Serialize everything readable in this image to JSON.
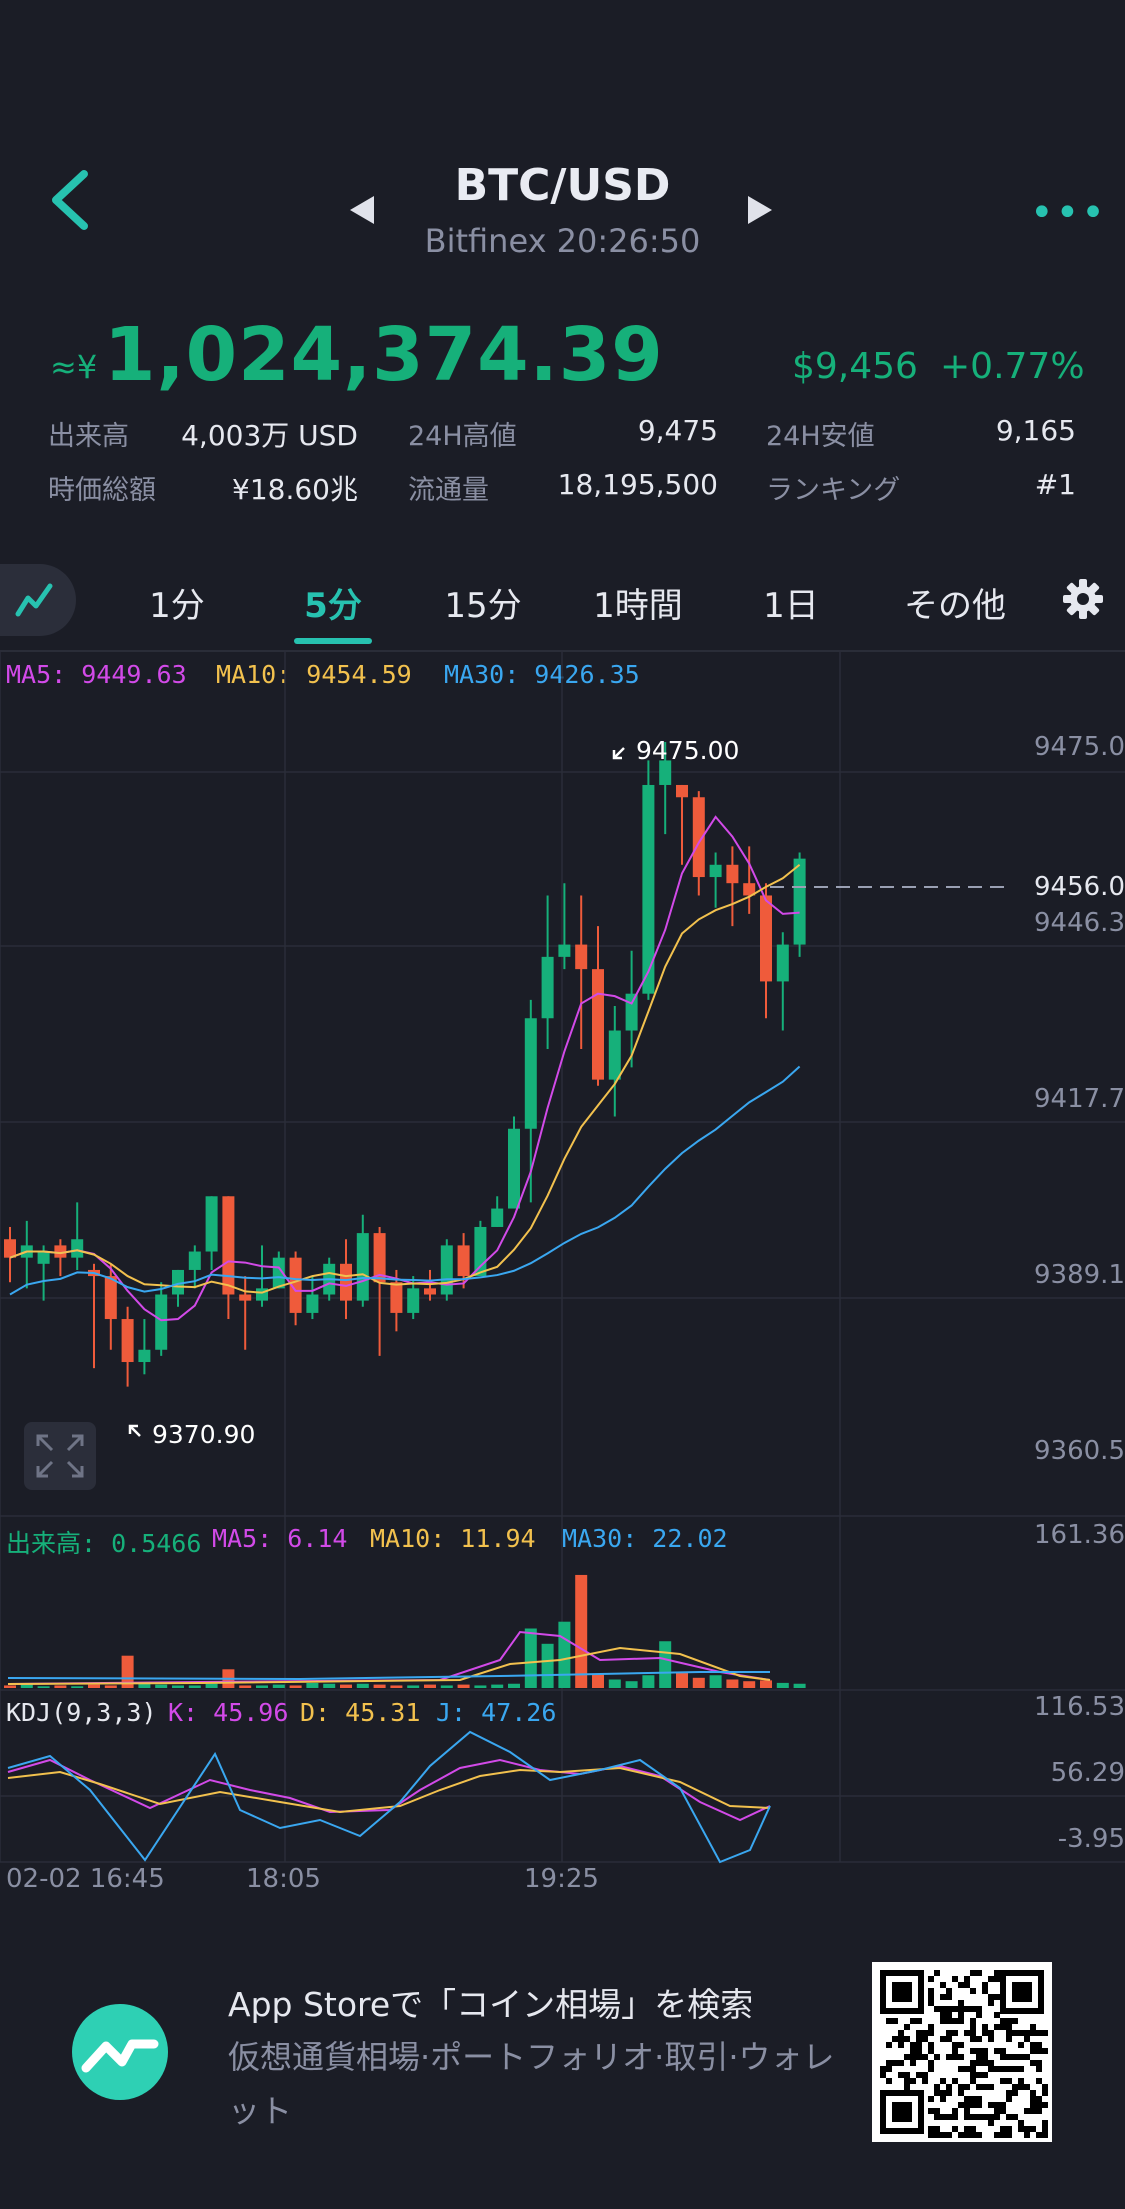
{
  "header": {
    "pair": "BTC/USD",
    "exchange_time": "Bitfinex 20:26:50"
  },
  "price": {
    "approx_prefix": "≈¥",
    "value": "1,024,374.39",
    "usd": "$9,456",
    "change": "+0.77%"
  },
  "stats": [
    {
      "label": "出来高",
      "value": "4,003万 USD"
    },
    {
      "label": "24H高値",
      "value": "9,475"
    },
    {
      "label": "24H安値",
      "value": "9,165"
    },
    {
      "label": "時価総額",
      "value": "¥18.60兆"
    },
    {
      "label": "流通量",
      "value": "18,195,500"
    },
    {
      "label": "ランキング",
      "value": "#1"
    }
  ],
  "tabs": [
    "1分",
    "5分",
    "15分",
    "1時間",
    "1日",
    "その他"
  ],
  "active_tab": "5分",
  "ma_legend": {
    "ma5": "MA5: 9449.63",
    "ma10": "MA10: 9454.59",
    "ma30": "MA30: 9426.35"
  },
  "price_axis": [
    "9475.0",
    "9456.0",
    "9446.3",
    "9417.7",
    "9389.1",
    "9360.5"
  ],
  "high_marker": "9475.00",
  "low_marker": "9370.90",
  "volume_legend": {
    "vol": "出来高: 0.5466",
    "ma5": "MA5: 6.14",
    "ma10": "MA10: 11.94",
    "ma30": "MA30: 22.02"
  },
  "volume_axis": "161.36",
  "kdj_legend": {
    "name": "KDJ(9,3,3)",
    "k": "K: 45.96",
    "d": "D: 45.31",
    "j": "J: 47.26"
  },
  "kdj_axis": [
    "116.53",
    "56.29",
    "-3.95"
  ],
  "time_axis": [
    "02-02 16:45",
    "18:05",
    "19:25"
  ],
  "banner": {
    "title": "App Storeで「コイン相場」を検索",
    "subtitle": "仮想通貨相場·ポートフォリオ·取引·ウォレット"
  },
  "colors": {
    "up": "#16b07a",
    "down": "#ef5b3b",
    "accent": "#27c2b0",
    "ma5": "#d24ae8",
    "ma10": "#f2c14e",
    "ma30": "#3aa7f0"
  },
  "icons": [
    "back-chevron-icon",
    "prev-pair-icon",
    "next-pair-icon",
    "more-icon",
    "chart-type-icon",
    "settings-gear-icon",
    "expand-icon",
    "app-logo-icon"
  ]
}
